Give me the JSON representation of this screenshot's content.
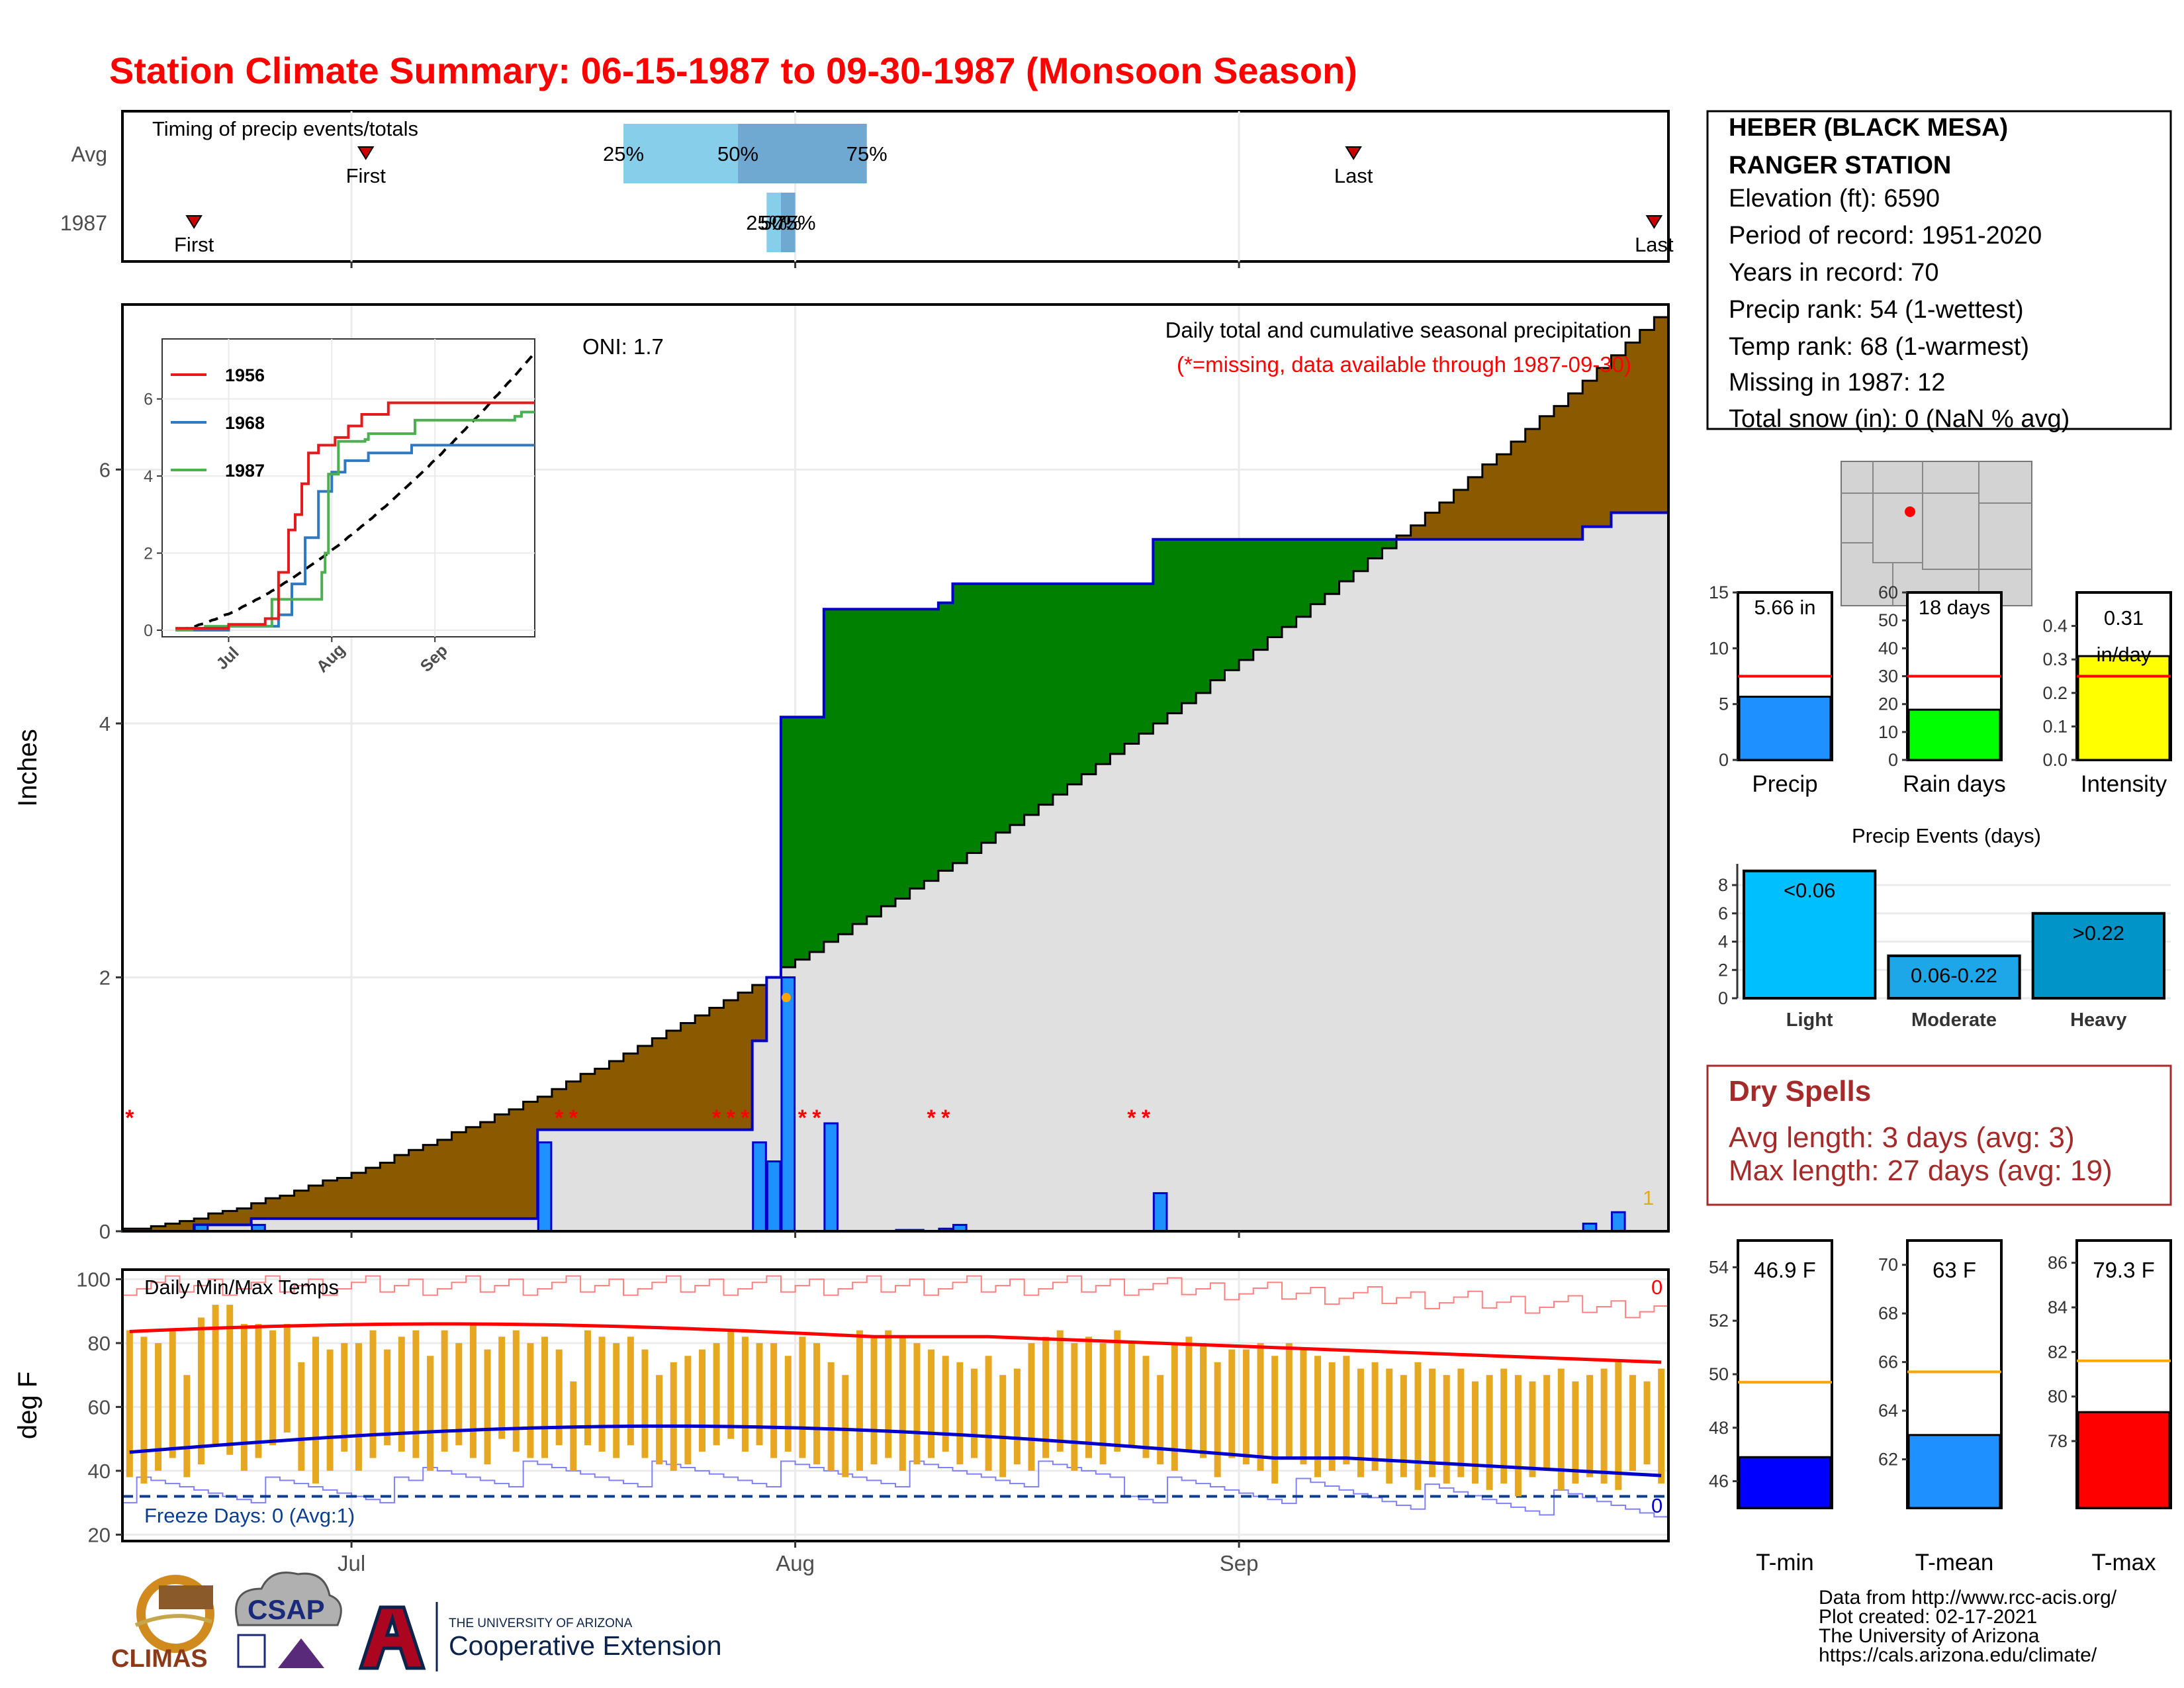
{
  "title": "Station Climate Summary: 06-15-1987 to 09-30-1987 (Monsoon Season)",
  "colors": {
    "title": "#ff0000",
    "brown": "#8b5a00",
    "green": "#008000",
    "bar": "#1e90ff",
    "grey_area": "#e0e0e0",
    "temp_bar": "#e6a820",
    "avg_max": "#ff0000",
    "avg_min": "#0000cd",
    "maroon": "#a52a2a",
    "light_blue": "#87ceeb",
    "mid_blue": "#6fa8d0"
  },
  "timing": {
    "title": "Timing of precip events/totals",
    "rows": [
      "Avg",
      "1987"
    ],
    "avg": {
      "first": "First",
      "last": "Last",
      "p25": "25%",
      "p50": "50%",
      "p75": "75%",
      "first_date": "1987-07-02",
      "p25_date": "1987-07-20",
      "p50_date": "1987-07-28",
      "p75_date": "1987-08-06",
      "last_date": "1987-09-09"
    },
    "y1987": {
      "first": "First",
      "last": "Last",
      "p25": "25%",
      "p50": "50%",
      "p75": "75%",
      "first_date": "1987-06-20",
      "p25_date": "1987-07-30",
      "p50_date": "1987-07-31",
      "p75_date": "1987-08-01",
      "last_date": "1987-09-30"
    }
  },
  "station": {
    "name_line1": "HEBER (BLACK MESA)",
    "name_line2": "RANGER STATION",
    "lines": [
      "Elevation (ft): 6590",
      "Period of record: 1951-2020",
      "Years in record: 70",
      "Precip rank: 54 (1-wettest)",
      "Temp rank: 68 (1-warmest)",
      "Missing in 1987: 12",
      "Total snow (in): 0 (NaN % avg)"
    ]
  },
  "main": {
    "subtitle": "Daily total and cumulative seasonal precipitation",
    "missing_note": "(*=missing, data available through 1987-09-30)",
    "oni": "ONI: 1.7",
    "ylabel": "Inches",
    "yticks": [
      "0",
      "2",
      "4",
      "6"
    ],
    "xticks": [
      "Jul",
      "Aug",
      "Sep"
    ],
    "corner_count": "1",
    "missing_marks": [
      "*",
      "**",
      "***",
      "**",
      "**",
      "**"
    ]
  },
  "inset": {
    "legend": [
      "1956",
      "1968",
      "1987"
    ],
    "yticks": [
      "0",
      "2",
      "4",
      "6"
    ],
    "xticks": [
      "Jul",
      "Aug",
      "Sep"
    ]
  },
  "mini_bars": [
    {
      "label": "Precip",
      "value_text": "5.66 in",
      "value": 5.66,
      "avg": 7.5,
      "ymax": 15,
      "yticks": [
        "0",
        "5",
        "10",
        "15"
      ],
      "color": "#1e90ff"
    },
    {
      "label": "Rain days",
      "value_text": "18 days",
      "value": 18,
      "avg": 30,
      "ymax": 60,
      "yticks": [
        "0",
        "10",
        "20",
        "30",
        "40",
        "50",
        "60"
      ],
      "color": "#00ff00"
    },
    {
      "label": "Intensity",
      "value_text": "0.31\nin/day",
      "value": 0.31,
      "avg": 0.25,
      "ymax": 0.5,
      "yticks": [
        "0.0",
        "0.1",
        "0.2",
        "0.3",
        "0.4"
      ],
      "color": "#ffff00"
    }
  ],
  "events": {
    "title": "Precip Events (days)",
    "categories": [
      "Light",
      "Moderate",
      "Heavy"
    ],
    "labels": [
      "<0.06",
      "0.06-0.22",
      ">0.22"
    ],
    "values": [
      9,
      3,
      6
    ],
    "yticks": [
      "0",
      "2",
      "4",
      "6",
      "8"
    ],
    "colors": [
      "#00bfff",
      "#1ea7e8",
      "#0094c8"
    ]
  },
  "dry_spells": {
    "title": "Dry Spells",
    "avg_line": "Avg length: 3 days (avg: 3)",
    "max_line": "Max length: 27 days (avg: 19)"
  },
  "temps": {
    "panel_label": "Daily Min/Max Temps",
    "ylabel": "deg F",
    "yticks": [
      "20",
      "40",
      "60",
      "80",
      "100"
    ],
    "xticks": [
      "Jul",
      "Aug",
      "Sep"
    ],
    "freeze_note": "Freeze Days: 0 (Avg:1)",
    "top_count": "0",
    "bottom_count": "0"
  },
  "temp_bars": [
    {
      "label": "T-min",
      "value_text": "46.9 F",
      "value": 46.9,
      "avg": 49.7,
      "ymin": 45,
      "ymax": 55,
      "yticks": [
        "46",
        "48",
        "50",
        "52",
        "54"
      ],
      "color": "#0000ff"
    },
    {
      "label": "T-mean",
      "value_text": "63 F",
      "value": 63.0,
      "avg": 65.6,
      "ymin": 60,
      "ymax": 71,
      "yticks": [
        "62",
        "64",
        "66",
        "68",
        "70"
      ],
      "color": "#1e90ff"
    },
    {
      "label": "T-max",
      "value_text": "79.3 F",
      "value": 79.3,
      "avg": 81.6,
      "ymin": 75,
      "ymax": 87,
      "yticks": [
        "78",
        "80",
        "82",
        "84",
        "86"
      ],
      "color": "#ff0000"
    }
  ],
  "footer": {
    "lines": [
      "Data from http://www.rcc-acis.org/",
      "Plot created: 02-17-2021",
      "The University of Arizona",
      "https://cals.arizona.edu/climate/"
    ],
    "logo_climas": "CLIMAS",
    "logo_csap": "CSAP",
    "ua_line1": "THE UNIVERSITY OF ARIZONA",
    "ua_line2": "Cooperative Extension"
  },
  "chart_data": {
    "type": "area",
    "x_start": "1987-06-15",
    "x_end": "1987-09-30",
    "ylim": [
      0,
      7.3
    ],
    "cumulative_1987": [
      [
        "1987-06-15",
        0
      ],
      [
        "1987-06-20",
        0.05
      ],
      [
        "1987-06-24",
        0.1
      ],
      [
        "1987-07-13",
        0.1
      ],
      [
        "1987-07-14",
        0.8
      ],
      [
        "1987-07-28",
        0.8
      ],
      [
        "1987-07-29",
        1.5
      ],
      [
        "1987-07-30",
        2.0
      ],
      [
        "1987-07-31",
        4.05
      ],
      [
        "1987-08-02",
        4.05
      ],
      [
        "1987-08-03",
        4.9
      ],
      [
        "1987-08-11",
        4.95
      ],
      [
        "1987-08-12",
        5.1
      ],
      [
        "1987-08-25",
        5.1
      ],
      [
        "1987-08-26",
        5.45
      ],
      [
        "1987-09-24",
        5.45
      ],
      [
        "1987-09-25",
        5.55
      ],
      [
        "1987-09-27",
        5.66
      ],
      [
        "1987-09-30",
        5.66
      ]
    ],
    "cumulative_avg_endpoints": [
      [
        "1987-06-15",
        0
      ],
      [
        "1987-09-30",
        7.2
      ]
    ],
    "daily_precip": [
      [
        "1987-06-20",
        0.05
      ],
      [
        "1987-06-24",
        0.05
      ],
      [
        "1987-07-14",
        0.7
      ],
      [
        "1987-07-29",
        0.7
      ],
      [
        "1987-07-30",
        0.55
      ],
      [
        "1987-07-31",
        2.0
      ],
      [
        "1987-08-03",
        0.85
      ],
      [
        "1987-08-08",
        0.01
      ],
      [
        "1987-08-09",
        0.01
      ],
      [
        "1987-08-11",
        0.02
      ],
      [
        "1987-08-12",
        0.05
      ],
      [
        "1987-08-26",
        0.3
      ],
      [
        "1987-09-25",
        0.06
      ],
      [
        "1987-09-27",
        0.15
      ]
    ],
    "missing_dates": [
      "1987-06-15",
      "1987-07-15",
      "1987-07-16",
      "1987-07-26",
      "1987-07-27",
      "1987-07-28",
      "1987-08-01",
      "1987-08-02",
      "1987-08-10",
      "1987-08-11",
      "1987-08-24",
      "1987-08-25"
    ],
    "temps_daily_range": [
      [
        38,
        84
      ],
      [
        36,
        82
      ],
      [
        40,
        80
      ],
      [
        44,
        84
      ],
      [
        38,
        70
      ],
      [
        42,
        88
      ],
      [
        48,
        92
      ],
      [
        45,
        92
      ],
      [
        40,
        86
      ],
      [
        44,
        86
      ],
      [
        48,
        84
      ],
      [
        52,
        86
      ],
      [
        40,
        74
      ],
      [
        36,
        82
      ],
      [
        40,
        78
      ],
      [
        46,
        80
      ],
      [
        40,
        80
      ],
      [
        44,
        84
      ],
      [
        48,
        78
      ],
      [
        46,
        82
      ],
      [
        44,
        84
      ],
      [
        40,
        76
      ],
      [
        46,
        84
      ],
      [
        48,
        80
      ],
      [
        44,
        86
      ],
      [
        42,
        78
      ],
      [
        50,
        82
      ],
      [
        46,
        84
      ],
      [
        44,
        80
      ],
      [
        44,
        82
      ],
      [
        48,
        78
      ],
      [
        40,
        68
      ],
      [
        48,
        84
      ],
      [
        46,
        82
      ],
      [
        44,
        80
      ],
      [
        48,
        82
      ],
      [
        44,
        78
      ],
      [
        42,
        70
      ],
      [
        40,
        74
      ],
      [
        42,
        76
      ],
      [
        46,
        78
      ],
      [
        48,
        80
      ],
      [
        50,
        84
      ],
      [
        46,
        82
      ],
      [
        48,
        80
      ],
      [
        44,
        80
      ],
      [
        46,
        76
      ],
      [
        44,
        82
      ],
      [
        42,
        80
      ],
      [
        40,
        74
      ],
      [
        38,
        70
      ],
      [
        40,
        84
      ],
      [
        42,
        82
      ],
      [
        44,
        84
      ],
      [
        40,
        82
      ],
      [
        42,
        80
      ],
      [
        44,
        78
      ],
      [
        46,
        76
      ],
      [
        42,
        74
      ],
      [
        44,
        72
      ],
      [
        40,
        76
      ],
      [
        38,
        70
      ],
      [
        42,
        72
      ],
      [
        40,
        80
      ],
      [
        44,
        82
      ],
      [
        46,
        84
      ],
      [
        40,
        80
      ],
      [
        44,
        82
      ],
      [
        42,
        80
      ],
      [
        46,
        84
      ],
      [
        48,
        80
      ],
      [
        44,
        76
      ],
      [
        42,
        70
      ],
      [
        40,
        80
      ],
      [
        46,
        82
      ],
      [
        44,
        80
      ],
      [
        38,
        74
      ],
      [
        44,
        78
      ],
      [
        42,
        78
      ],
      [
        40,
        80
      ],
      [
        36,
        76
      ],
      [
        44,
        80
      ],
      [
        42,
        78
      ],
      [
        38,
        76
      ],
      [
        40,
        74
      ],
      [
        42,
        76
      ],
      [
        38,
        72
      ],
      [
        40,
        74
      ],
      [
        36,
        72
      ],
      [
        38,
        70
      ],
      [
        34,
        74
      ],
      [
        38,
        72
      ],
      [
        36,
        70
      ],
      [
        38,
        72
      ],
      [
        36,
        68
      ],
      [
        34,
        70
      ],
      [
        36,
        72
      ],
      [
        32,
        70
      ],
      [
        38,
        68
      ],
      [
        40,
        70
      ],
      [
        34,
        72
      ],
      [
        36,
        68
      ],
      [
        38,
        70
      ],
      [
        36,
        72
      ],
      [
        34,
        74
      ],
      [
        40,
        70
      ],
      [
        42,
        68
      ],
      [
        36,
        72
      ]
    ],
    "temp_ylim": [
      18,
      103
    ],
    "freeze_line": 32
  }
}
